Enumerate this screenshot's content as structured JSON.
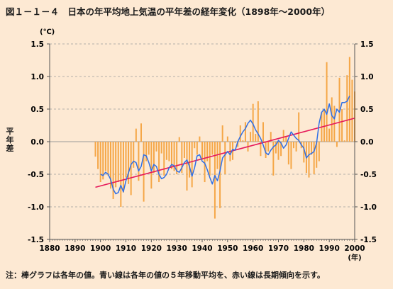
{
  "title": "図１－１－４　日本の年平均地上気温の平年差の経年変化（1898年～2000年）",
  "footnote": "注：棒グラフは各年の値。青い線は各年の値の５年移動平均を、赤い線は長期傾向を示す。",
  "colors": {
    "background": "#fde9d3",
    "bar": "#f5a646",
    "moving_average": "#2f6fe6",
    "trend": "#e6195a",
    "axis": "#555555",
    "grid": "#9a9a9a"
  },
  "chart_data": {
    "type": "bar",
    "title": "",
    "ylabel": "平年差",
    "yunit": "(℃)",
    "xunit": "(年)",
    "ylim": [
      -1.5,
      1.5
    ],
    "xlim": [
      1880,
      2000
    ],
    "xticks": [
      "1880",
      "1890",
      "1900",
      "1910",
      "1920",
      "1930",
      "1940",
      "1950",
      "1960",
      "1970",
      "1980",
      "1990",
      "2000"
    ],
    "yticks": [
      "1.5",
      "1.0",
      "0.5",
      "0.0",
      "-0.5",
      "-1.0",
      "-1.5"
    ],
    "grid": true,
    "bars": {
      "name": "各年の値",
      "x": [
        1898,
        1899,
        1900,
        1901,
        1902,
        1903,
        1904,
        1905,
        1906,
        1907,
        1908,
        1909,
        1910,
        1911,
        1912,
        1913,
        1914,
        1915,
        1916,
        1917,
        1918,
        1919,
        1920,
        1921,
        1922,
        1923,
        1924,
        1925,
        1926,
        1927,
        1928,
        1929,
        1930,
        1931,
        1932,
        1933,
        1934,
        1935,
        1936,
        1937,
        1938,
        1939,
        1940,
        1941,
        1942,
        1943,
        1944,
        1945,
        1946,
        1947,
        1948,
        1949,
        1950,
        1951,
        1952,
        1953,
        1954,
        1955,
        1956,
        1957,
        1958,
        1959,
        1960,
        1961,
        1962,
        1963,
        1964,
        1965,
        1966,
        1967,
        1968,
        1969,
        1970,
        1971,
        1972,
        1973,
        1974,
        1975,
        1976,
        1977,
        1978,
        1979,
        1980,
        1981,
        1982,
        1983,
        1984,
        1985,
        1986,
        1987,
        1988,
        1989,
        1990,
        1991,
        1992,
        1993,
        1994,
        1995,
        1996,
        1997,
        1998,
        1999,
        2000
      ],
      "values": [
        -0.23,
        -0.42,
        -0.62,
        -0.58,
        -0.45,
        -0.52,
        -0.72,
        -0.88,
        -0.7,
        -0.62,
        -1.0,
        -0.78,
        -0.55,
        -0.65,
        -0.82,
        -0.4,
        0.2,
        -0.6,
        0.28,
        -0.92,
        -0.3,
        -0.2,
        -0.72,
        -0.48,
        -0.15,
        -0.62,
        -0.18,
        -0.52,
        -0.28,
        -0.3,
        -0.42,
        -0.45,
        -0.5,
        0.07,
        -0.48,
        -0.25,
        -0.75,
        -0.55,
        -0.7,
        -0.1,
        -0.2,
        0.08,
        -0.28,
        -0.62,
        -0.3,
        -0.52,
        -0.2,
        -1.18,
        -0.42,
        -1.02,
        0.25,
        -0.5,
        0.08,
        -0.3,
        -0.28,
        -0.02,
        -0.08,
        0.25,
        0.02,
        0.3,
        -0.15,
        0.15,
        0.58,
        0.12,
        0.62,
        -0.22,
        0.3,
        -0.25,
        -0.15,
        0.15,
        -0.52,
        -0.18,
        -0.28,
        -0.22,
        0.18,
        0.08,
        -0.35,
        -0.42,
        -0.1,
        -0.15,
        0.45,
        -0.1,
        -0.32,
        -0.48,
        -0.55,
        -0.2,
        -0.5,
        -0.4,
        -0.3,
        0.45,
        0.5,
        1.22,
        0.2,
        0.68,
        0.55,
        -0.08,
        0.98,
        0.5,
        0.02,
        1.02,
        1.3,
        0.95,
        0.77
      ]
    },
    "series": [
      {
        "name": "5年移動平均",
        "x": [
          1900,
          1901,
          1902,
          1903,
          1904,
          1905,
          1906,
          1907,
          1908,
          1909,
          1910,
          1911,
          1912,
          1913,
          1914,
          1915,
          1916,
          1917,
          1918,
          1919,
          1920,
          1921,
          1922,
          1923,
          1924,
          1925,
          1926,
          1927,
          1928,
          1929,
          1930,
          1931,
          1932,
          1933,
          1934,
          1935,
          1936,
          1937,
          1938,
          1939,
          1940,
          1941,
          1942,
          1943,
          1944,
          1945,
          1946,
          1947,
          1948,
          1949,
          1950,
          1951,
          1952,
          1953,
          1954,
          1955,
          1956,
          1957,
          1958,
          1959,
          1960,
          1961,
          1962,
          1963,
          1964,
          1965,
          1966,
          1967,
          1968,
          1969,
          1970,
          1971,
          1972,
          1973,
          1974,
          1975,
          1976,
          1977,
          1978,
          1979,
          1980,
          1981,
          1982,
          1983,
          1984,
          1985,
          1986,
          1987,
          1988,
          1989,
          1990,
          1991,
          1992,
          1993,
          1994,
          1995,
          1996,
          1997,
          1998
        ],
        "values": [
          -0.5,
          -0.52,
          -0.47,
          -0.5,
          -0.58,
          -0.73,
          -0.8,
          -0.78,
          -0.67,
          -0.77,
          -0.6,
          -0.48,
          -0.35,
          -0.3,
          -0.32,
          -0.45,
          -0.38,
          -0.2,
          -0.22,
          -0.32,
          -0.45,
          -0.35,
          -0.38,
          -0.5,
          -0.57,
          -0.55,
          -0.5,
          -0.4,
          -0.35,
          -0.37,
          -0.45,
          -0.47,
          -0.4,
          -0.32,
          -0.28,
          -0.38,
          -0.53,
          -0.4,
          -0.22,
          -0.2,
          -0.3,
          -0.33,
          -0.43,
          -0.55,
          -0.65,
          -0.52,
          -0.6,
          -0.45,
          -0.25,
          -0.2,
          -0.15,
          -0.2,
          -0.12,
          -0.13,
          0.0,
          0.08,
          0.15,
          0.2,
          0.28,
          0.33,
          0.27,
          0.18,
          0.12,
          0.05,
          -0.05,
          -0.17,
          -0.2,
          -0.13,
          -0.08,
          -0.05,
          0.02,
          -0.02,
          -0.1,
          -0.05,
          0.05,
          0.15,
          0.1,
          0.05,
          0.02,
          -0.05,
          -0.1,
          -0.25,
          -0.2,
          -0.18,
          -0.15,
          -0.02,
          0.28,
          0.45,
          0.5,
          0.42,
          0.58,
          0.4,
          0.35,
          0.5,
          0.45,
          0.6,
          0.6,
          0.62,
          0.7
        ]
      },
      {
        "name": "長期傾向",
        "x": [
          1898,
          2000
        ],
        "values": [
          -0.7,
          0.36
        ]
      }
    ]
  }
}
